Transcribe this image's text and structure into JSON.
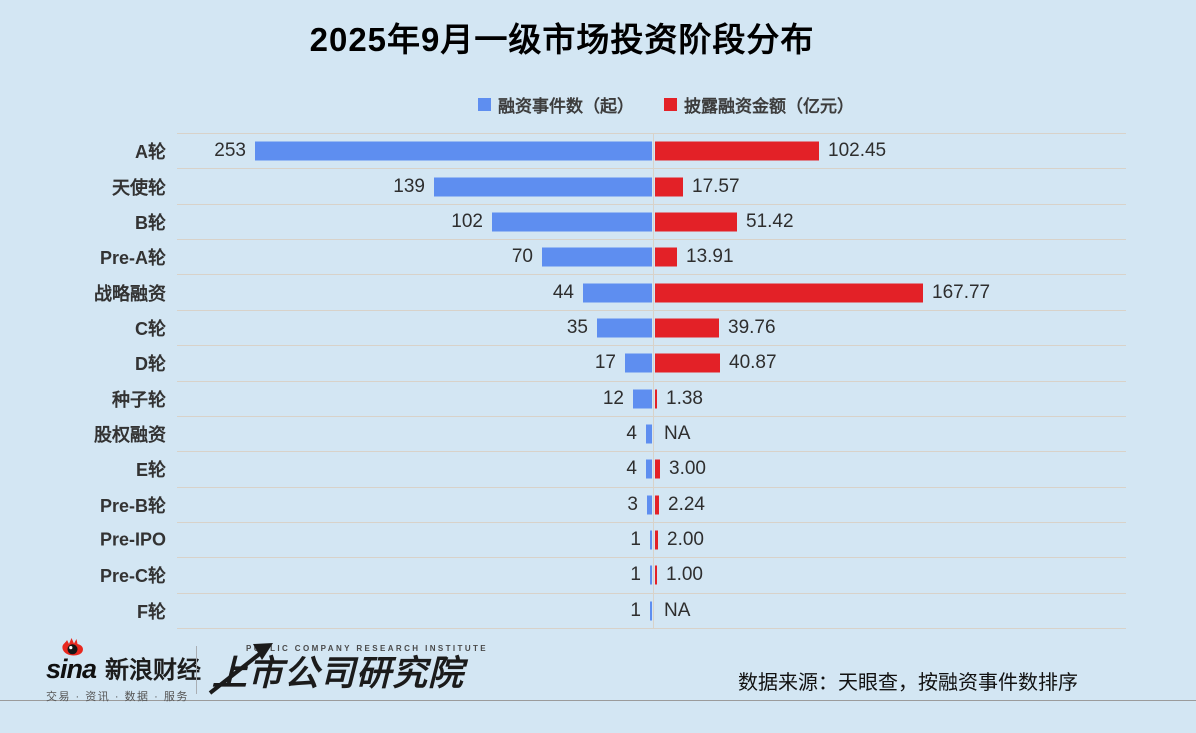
{
  "title": "2025年9月一级市场投资阶段分布",
  "legend": {
    "events": "融资事件数（起）",
    "amount": "披露融资金额（亿元）"
  },
  "chart_data": {
    "type": "bar",
    "orientation": "horizontal-diverging",
    "legend_position": "top",
    "categories": [
      "A轮",
      "天使轮",
      "B轮",
      "Pre-A轮",
      "战略融资",
      "C轮",
      "D轮",
      "种子轮",
      "股权融资",
      "E轮",
      "Pre-B轮",
      "Pre-IPO",
      "Pre-C轮",
      "F轮"
    ],
    "series": [
      {
        "name": "融资事件数（起）",
        "direction": "left",
        "color": "#5e8ef0",
        "values": [
          253,
          139,
          102,
          70,
          44,
          35,
          17,
          12,
          4,
          4,
          3,
          1,
          1,
          1
        ]
      },
      {
        "name": "披露融资金额（亿元）",
        "direction": "right",
        "color": "#e32127",
        "values": [
          102.45,
          17.57,
          51.42,
          13.91,
          167.77,
          39.76,
          40.87,
          1.38,
          null,
          3.0,
          2.24,
          2.0,
          1.0,
          null
        ]
      }
    ],
    "value_labels": {
      "events": [
        "253",
        "139",
        "102",
        "70",
        "44",
        "35",
        "17",
        "12",
        "4",
        "4",
        "3",
        "1",
        "1",
        "1"
      ],
      "amounts": [
        "102.45",
        "17.57",
        "51.42",
        "13.91",
        "167.77",
        "39.76",
        "40.87",
        "1.38",
        "NA",
        "3.00",
        "2.24",
        "2.00",
        "1.00",
        "NA"
      ]
    },
    "sorted_by": "按融资事件数排序",
    "grid": "horizontal row separators with central axis line"
  },
  "footer": {
    "sina": {
      "brand": "sina",
      "brand_cn": "新浪财经",
      "tagline": "交易 · 资讯 · 数据 · 服务"
    },
    "institute": {
      "name_en": "PUBLIC COMPANY RESEARCH INSTITUTE",
      "name_cn": "上市公司研究院"
    },
    "source": "数据来源：天眼查，按融资事件数排序"
  },
  "colors": {
    "background": "#d3e6f3",
    "events_bar": "#5e8ef0",
    "amount_bar": "#e32127",
    "gridline": "#d8d2c9",
    "footer_rule": "#9b9b9b",
    "sina_red": "#e8281e"
  }
}
